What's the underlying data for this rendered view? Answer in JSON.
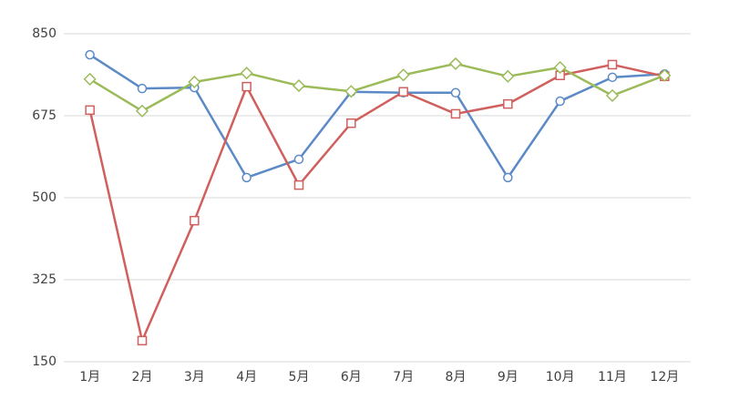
{
  "chart_data": {
    "type": "line",
    "categories": [
      "1月",
      "2月",
      "3月",
      "4月",
      "5月",
      "6月",
      "7月",
      "8月",
      "9月",
      "10月",
      "11月",
      "12月"
    ],
    "series": [
      {
        "color": "#5b8ac6",
        "marker": "circle",
        "values": [
          805,
          733,
          735,
          543,
          582,
          726,
          724,
          724,
          543,
          706,
          757,
          764
        ]
      },
      {
        "color": "#d0605e",
        "marker": "square",
        "values": [
          687,
          195,
          451,
          737,
          527,
          659,
          726,
          679,
          700,
          761,
          784,
          759
        ]
      },
      {
        "color": "#9bbb59",
        "marker": "diamond",
        "values": [
          753,
          685,
          747,
          766,
          739,
          727,
          762,
          786,
          759,
          778,
          718,
          761
        ]
      }
    ],
    "ylim": [
      150,
      850
    ],
    "yticks": [
      150,
      325,
      500,
      675,
      850
    ],
    "grid": true
  }
}
